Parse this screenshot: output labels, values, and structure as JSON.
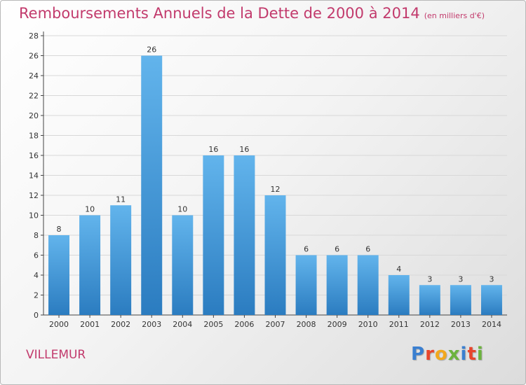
{
  "header": {
    "title": "Remboursements Annuels de la Dette de 2000 à 2014",
    "unit": "(en milliers d'€)"
  },
  "footer": {
    "city": "VILLEMUR",
    "logo_letters": [
      {
        "ch": "P",
        "color": "#3a7fd0"
      },
      {
        "ch": "r",
        "color": "#e8452c"
      },
      {
        "ch": "o",
        "color": "#f2a81d"
      },
      {
        "ch": "x",
        "color": "#6cb33e"
      },
      {
        "ch": "i",
        "color": "#3a7fd0"
      },
      {
        "ch": "t",
        "color": "#e8452c"
      },
      {
        "ch": "i",
        "color": "#6cb33e"
      }
    ]
  },
  "colors": {
    "title": "#c23a6c",
    "bar_top": "#62b4ec",
    "bar_bottom": "#2b7cc0",
    "grid": "#d8d8d8"
  },
  "chart_data": {
    "type": "bar",
    "title": "Remboursements Annuels de la Dette de 2000 à 2014",
    "ylabel": "",
    "xlabel": "",
    "categories": [
      "2000",
      "2001",
      "2002",
      "2003",
      "2004",
      "2005",
      "2006",
      "2007",
      "2008",
      "2009",
      "2010",
      "2011",
      "2012",
      "2013",
      "2014"
    ],
    "values": [
      8,
      10,
      11,
      26,
      10,
      16,
      16,
      12,
      6,
      6,
      6,
      4,
      3,
      3,
      3
    ],
    "ylim": [
      0,
      28
    ],
    "yticks": [
      0,
      2,
      4,
      6,
      8,
      10,
      12,
      14,
      16,
      18,
      20,
      22,
      24,
      26,
      28
    ],
    "grid": true,
    "data_labels": true
  }
}
